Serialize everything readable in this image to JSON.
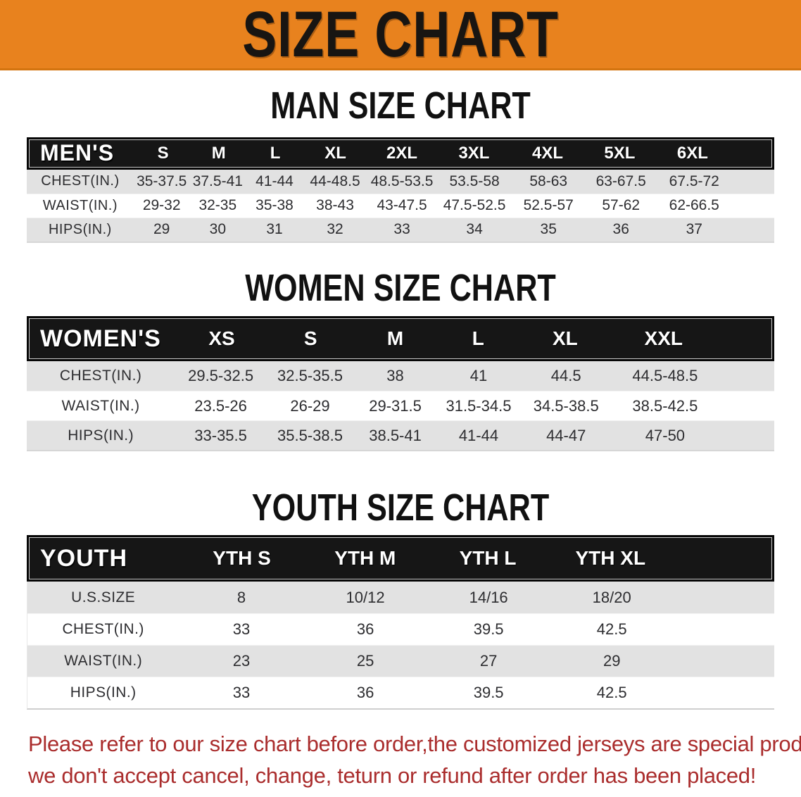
{
  "banner": {
    "title": "SIZE CHART",
    "bg_color": "#E8821E"
  },
  "sections": [
    {
      "title": "MAN SIZE CHART",
      "table": {
        "label": "MEN'S",
        "columns": [
          "S",
          "M",
          "L",
          "XL",
          "2XL",
          "3XL",
          "4XL",
          "5XL",
          "6XL"
        ],
        "rows": [
          {
            "label": "CHEST(IN.)",
            "values": [
              "35-37.5",
              "37.5-41",
              "41-44",
              "44-48.5",
              "48.5-53.5",
              "53.5-58",
              "58-63",
              "63-67.5",
              "67.5-72"
            ]
          },
          {
            "label": "WAIST(IN.)",
            "values": [
              "29-32",
              "32-35",
              "35-38",
              "38-43",
              "43-47.5",
              "47.5-52.5",
              "52.5-57",
              "57-62",
              "62-66.5"
            ]
          },
          {
            "label": "HIPS(IN.)",
            "values": [
              "29",
              "30",
              "31",
              "32",
              "33",
              "34",
              "35",
              "36",
              "37"
            ]
          }
        ]
      }
    },
    {
      "title": "WOMEN SIZE CHART",
      "table": {
        "label": "WOMEN'S",
        "columns": [
          "XS",
          "S",
          "M",
          "L",
          "XL",
          "XXL"
        ],
        "rows": [
          {
            "label": "CHEST(IN.)",
            "values": [
              "29.5-32.5",
              "32.5-35.5",
              "38",
              "41",
              "44.5",
              "44.5-48.5"
            ]
          },
          {
            "label": "WAIST(IN.)",
            "values": [
              "23.5-26",
              "26-29",
              "29-31.5",
              "31.5-34.5",
              "34.5-38.5",
              "38.5-42.5"
            ]
          },
          {
            "label": "HIPS(IN.)",
            "values": [
              "33-35.5",
              "35.5-38.5",
              "38.5-41",
              "41-44",
              "44-47",
              "47-50"
            ]
          }
        ]
      }
    },
    {
      "title": "YOUTH SIZE CHART",
      "table": {
        "label": "YOUTH",
        "columns": [
          "YTH S",
          "YTH M",
          "YTH L",
          "YTH XL"
        ],
        "rows": [
          {
            "label": "U.S.SIZE",
            "values": [
              "8",
              "10/12",
              "14/16",
              "18/20"
            ]
          },
          {
            "label": "CHEST(IN.)",
            "values": [
              "33",
              "36",
              "39.5",
              "42.5"
            ]
          },
          {
            "label": "WAIST(IN.)",
            "values": [
              "23",
              "25",
              "27",
              "29"
            ]
          },
          {
            "label": "HIPS(IN.)",
            "values": [
              "33",
              "36",
              "39.5",
              "42.5"
            ]
          }
        ]
      }
    }
  ],
  "disclaimer": {
    "line1": "Please refer to our size chart before order,the customized jerseys are special products,",
    "line2": "we don't accept cancel, change, teturn or refund after order has been placed!",
    "text_color": "#AA2D2D"
  }
}
